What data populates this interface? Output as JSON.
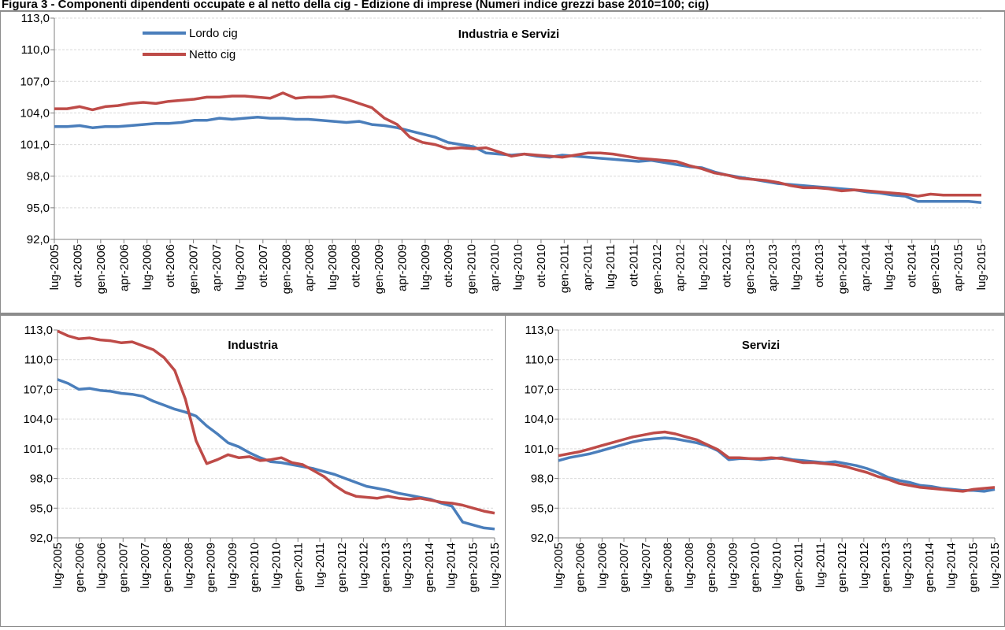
{
  "page": {
    "title": "Figura 3 - Componenti dipendenti occupate e al netto della cig - Edizione di imprese (Numeri indice grezzi base 2010=100; cig)"
  },
  "colors": {
    "lordo": "#4a7ebb",
    "netto": "#be4b48",
    "axis": "#808080",
    "grid": "#d9d9d9"
  },
  "chart_data": [
    {
      "type": "line",
      "title": "Industria e Servizi",
      "legend": [
        "Lordo cig",
        "Netto cig"
      ],
      "legend_position": "top-left",
      "ylim": [
        92.0,
        113.0
      ],
      "yticks": [
        "92,0",
        "95,0",
        "98,0",
        "101,0",
        "104,0",
        "107,0",
        "110,0",
        "113,0"
      ],
      "xtick_step_months": 3,
      "xticks": [
        "lug-2005",
        "ott-2005",
        "gen-2006",
        "apr-2006",
        "lug-2006",
        "ott-2006",
        "gen-2007",
        "apr-2007",
        "lug-2007",
        "ott-2007",
        "gen-2008",
        "apr-2008",
        "lug-2008",
        "ott-2008",
        "gen-2009",
        "apr-2009",
        "lug-2009",
        "ott-2009",
        "gen-2010",
        "apr-2010",
        "lug-2010",
        "ott-2010",
        "gen-2011",
        "apr-2011",
        "lug-2011",
        "ott-2011",
        "gen-2012",
        "apr-2012",
        "lug-2012",
        "ott-2012",
        "gen-2013",
        "apr-2013",
        "lug-2013",
        "ott-2013",
        "gen-2014",
        "apr-2014",
        "lug-2014",
        "ott-2014",
        "gen-2015",
        "apr-2015",
        "lug-2015"
      ],
      "series": [
        {
          "name": "Lordo cig",
          "values": [
            102.7,
            102.7,
            102.8,
            102.6,
            102.7,
            102.7,
            102.8,
            102.9,
            103.0,
            103.0,
            103.1,
            103.3,
            103.3,
            103.5,
            103.4,
            103.5,
            103.6,
            103.5,
            103.5,
            103.4,
            103.4,
            103.3,
            103.2,
            103.1,
            103.2,
            102.9,
            102.8,
            102.6,
            102.3,
            102.0,
            101.7,
            101.2,
            101.0,
            100.8,
            100.2,
            100.1,
            100.0,
            100.1,
            99.9,
            99.8,
            100.0,
            99.9,
            99.8,
            99.7,
            99.6,
            99.5,
            99.4,
            99.5,
            99.3,
            99.1,
            98.9,
            98.8,
            98.4,
            98.1,
            97.9,
            97.7,
            97.5,
            97.3,
            97.2,
            97.1,
            97.0,
            96.9,
            96.8,
            96.7,
            96.5,
            96.4,
            96.2,
            96.1,
            95.6,
            95.6,
            95.6,
            95.6,
            95.6,
            95.5
          ]
        },
        {
          "name": "Netto cig",
          "values": [
            104.4,
            104.4,
            104.6,
            104.3,
            104.6,
            104.7,
            104.9,
            105.0,
            104.9,
            105.1,
            105.2,
            105.3,
            105.5,
            105.5,
            105.6,
            105.6,
            105.5,
            105.4,
            105.9,
            105.4,
            105.5,
            105.5,
            105.6,
            105.3,
            104.9,
            104.5,
            103.5,
            102.9,
            101.7,
            101.2,
            101.0,
            100.6,
            100.7,
            100.6,
            100.7,
            100.3,
            99.9,
            100.1,
            100.0,
            99.9,
            99.8,
            100.0,
            100.2,
            100.2,
            100.1,
            99.9,
            99.7,
            99.6,
            99.5,
            99.4,
            99.0,
            98.7,
            98.3,
            98.1,
            97.8,
            97.7,
            97.6,
            97.4,
            97.1,
            96.9,
            96.9,
            96.8,
            96.6,
            96.7,
            96.6,
            96.5,
            96.4,
            96.3,
            96.1,
            96.3,
            96.2,
            96.2,
            96.2,
            96.2
          ]
        }
      ]
    },
    {
      "type": "line",
      "title": "Industria",
      "ylim": [
        92.0,
        113.0
      ],
      "yticks": [
        "92,0",
        "95,0",
        "98,0",
        "101,0",
        "104,0",
        "107,0",
        "110,0",
        "113,0"
      ],
      "xtick_step_months": 6,
      "xticks": [
        "lug-2005",
        "gen-2006",
        "lug-2006",
        "gen-2007",
        "lug-2007",
        "gen-2008",
        "lug-2008",
        "gen-2009",
        "lug-2009",
        "gen-2010",
        "lug-2010",
        "gen-2011",
        "lug-2011",
        "gen-2012",
        "lug-2012",
        "gen-2013",
        "lug-2013",
        "gen-2014",
        "lug-2014",
        "gen-2015",
        "lug-2015"
      ],
      "series": [
        {
          "name": "Lordo cig",
          "values": [
            108.0,
            107.6,
            107.0,
            107.1,
            106.9,
            106.8,
            106.6,
            106.5,
            106.3,
            105.8,
            105.4,
            105.0,
            104.7,
            104.3,
            103.3,
            102.5,
            101.6,
            101.2,
            100.6,
            100.1,
            99.7,
            99.6,
            99.4,
            99.2,
            99.0,
            98.7,
            98.4,
            98.0,
            97.6,
            97.2,
            97.0,
            96.8,
            96.5,
            96.3,
            96.1,
            95.9,
            95.5,
            95.2,
            93.6,
            93.3,
            93.0,
            92.9
          ]
        },
        {
          "name": "Netto cig",
          "values": [
            112.9,
            112.4,
            112.1,
            112.2,
            112.0,
            111.9,
            111.7,
            111.8,
            111.4,
            111.0,
            110.2,
            108.9,
            106.0,
            101.8,
            99.5,
            99.9,
            100.4,
            100.1,
            100.2,
            99.8,
            99.9,
            100.1,
            99.6,
            99.4,
            98.8,
            98.2,
            97.3,
            96.6,
            96.2,
            96.1,
            96.0,
            96.2,
            96.0,
            95.9,
            96.0,
            95.8,
            95.6,
            95.5,
            95.3,
            95.0,
            94.7,
            94.5
          ]
        }
      ]
    },
    {
      "type": "line",
      "title": "Servizi",
      "ylim": [
        92.0,
        113.0
      ],
      "yticks": [
        "92,0",
        "95,0",
        "98,0",
        "101,0",
        "104,0",
        "107,0",
        "110,0",
        "113,0"
      ],
      "xtick_step_months": 6,
      "xticks": [
        "lug-2005",
        "gen-2006",
        "lug-2006",
        "gen-2007",
        "lug-2007",
        "gen-2008",
        "lug-2008",
        "gen-2009",
        "lug-2009",
        "gen-2010",
        "lug-2010",
        "gen-2011",
        "lug-2011",
        "gen-2012",
        "lug-2012",
        "gen-2013",
        "lug-2013",
        "gen-2014",
        "lug-2014",
        "gen-2015",
        "lug-2015"
      ],
      "series": [
        {
          "name": "Lordo cig",
          "values": [
            99.8,
            100.1,
            100.3,
            100.5,
            100.8,
            101.1,
            101.4,
            101.7,
            101.9,
            102.0,
            102.1,
            102.0,
            101.8,
            101.6,
            101.3,
            100.8,
            99.9,
            100.0,
            100.0,
            99.9,
            100.0,
            100.1,
            99.9,
            99.8,
            99.7,
            99.6,
            99.7,
            99.5,
            99.3,
            99.0,
            98.6,
            98.1,
            97.8,
            97.6,
            97.3,
            97.2,
            97.0,
            96.9,
            96.8,
            96.8,
            96.7,
            96.9
          ]
        },
        {
          "name": "Netto cig",
          "values": [
            100.3,
            100.5,
            100.7,
            101.0,
            101.3,
            101.6,
            101.9,
            102.2,
            102.4,
            102.6,
            102.7,
            102.5,
            102.2,
            101.9,
            101.4,
            100.9,
            100.1,
            100.1,
            100.0,
            100.0,
            100.1,
            100.0,
            99.8,
            99.6,
            99.6,
            99.5,
            99.4,
            99.2,
            98.9,
            98.6,
            98.2,
            97.9,
            97.5,
            97.3,
            97.1,
            97.0,
            96.9,
            96.8,
            96.7,
            96.9,
            97.0,
            97.1
          ]
        }
      ]
    }
  ]
}
